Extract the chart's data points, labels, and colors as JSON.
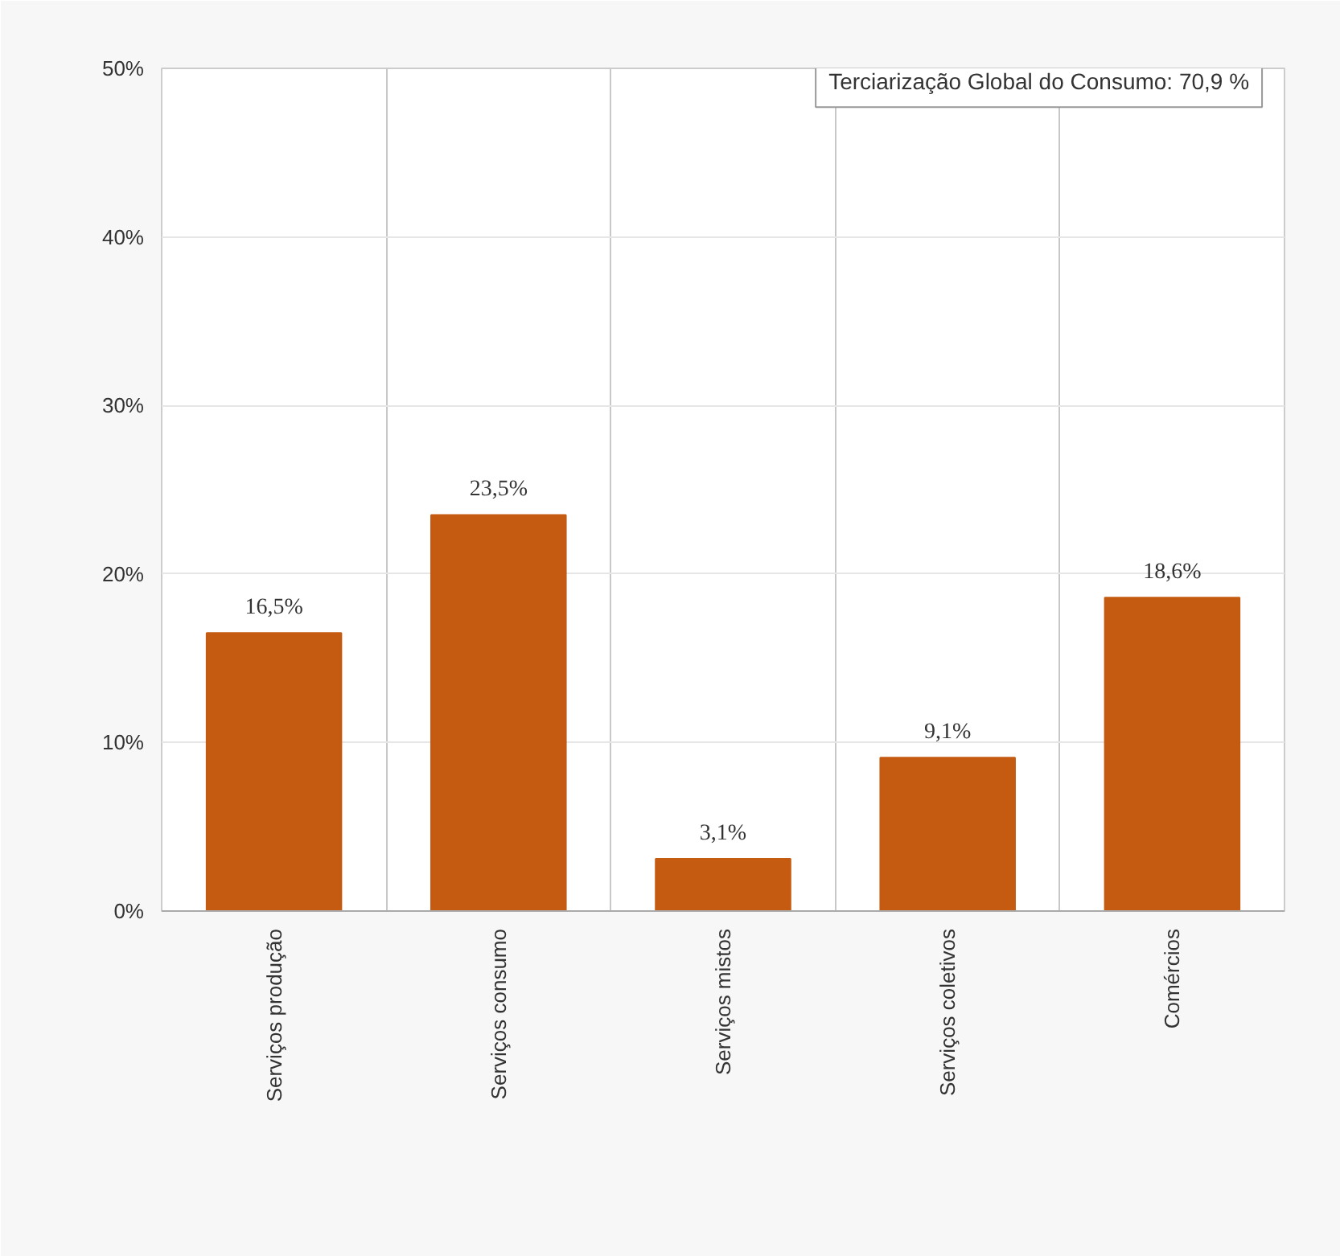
{
  "chart_data": {
    "type": "bar",
    "categories": [
      "Serviços produção",
      "Serviços consumo",
      "Serviços mistos",
      "Serviços coletivos",
      "Comércios"
    ],
    "values": [
      16.5,
      23.5,
      3.1,
      9.1,
      18.6
    ],
    "value_labels": [
      "16,5%",
      "23,5%",
      "3,1%",
      "9,1%",
      "18,6%"
    ],
    "color": "#c55a11",
    "ylim": [
      0,
      50
    ],
    "yticks": [
      {
        "value": 0,
        "label": "0%"
      },
      {
        "value": 10,
        "label": "10%"
      },
      {
        "value": 20,
        "label": "20%"
      },
      {
        "value": 30,
        "label": "30%"
      },
      {
        "value": 40,
        "label": "40%"
      },
      {
        "value": 50,
        "label": "50%"
      }
    ],
    "grid": true,
    "annotations": [
      "Terciarização Global do Consumo: 70,9 %"
    ]
  }
}
